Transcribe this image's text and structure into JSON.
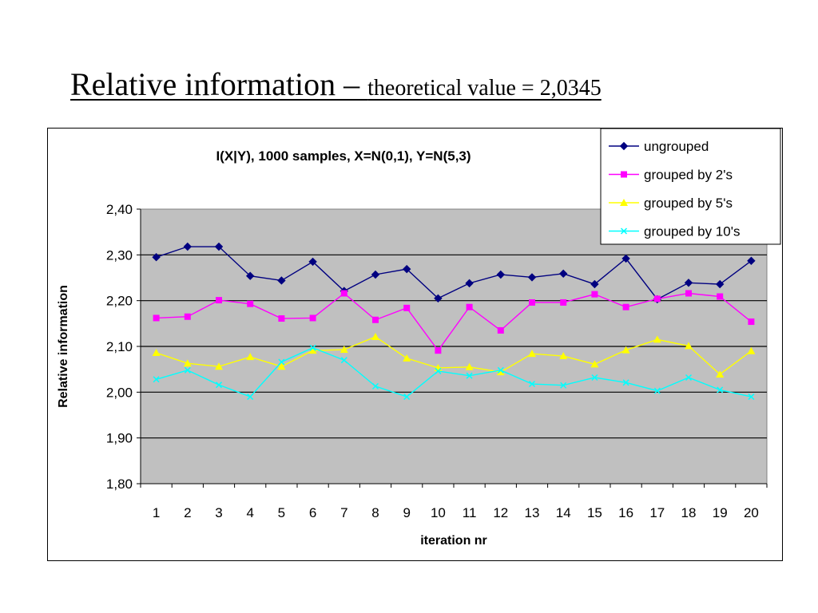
{
  "slide": {
    "title_main": "Relative information – ",
    "title_sub": "theoretical value = 2,0345"
  },
  "chart_data": {
    "type": "line",
    "title": "I(X|Y), 1000 samples, X=N(0,1), Y=N(5,3)",
    "xlabel": "iteration nr",
    "ylabel": "Relative information",
    "categories": [
      "1",
      "2",
      "3",
      "4",
      "5",
      "6",
      "7",
      "8",
      "9",
      "10",
      "11",
      "12",
      "13",
      "14",
      "15",
      "16",
      "17",
      "18",
      "19",
      "20"
    ],
    "ylim": [
      1.8,
      2.4
    ],
    "yticks": [
      "1,80",
      "1,90",
      "2,00",
      "2,10",
      "2,20",
      "2,30",
      "2,40"
    ],
    "grid": true,
    "legend_position": "top-right",
    "plot_background": "#c0c0c0",
    "series": [
      {
        "name": "ungrouped",
        "color": "#000080",
        "marker": "diamond",
        "values": [
          2.295,
          2.318,
          2.318,
          2.254,
          2.244,
          2.285,
          2.221,
          2.257,
          2.269,
          2.205,
          2.238,
          2.257,
          2.251,
          2.259,
          2.236,
          2.292,
          2.203,
          2.239,
          2.236,
          2.287
        ]
      },
      {
        "name": "grouped by 2's",
        "color": "#ff00ff",
        "marker": "square",
        "values": [
          2.162,
          2.165,
          2.201,
          2.193,
          2.161,
          2.162,
          2.216,
          2.158,
          2.184,
          2.091,
          2.186,
          2.135,
          2.196,
          2.196,
          2.214,
          2.186,
          2.204,
          2.216,
          2.209,
          2.154
        ]
      },
      {
        "name": "grouped by 5's",
        "color": "#ffff00",
        "marker": "triangle",
        "values": [
          2.086,
          2.063,
          2.056,
          2.077,
          2.056,
          2.091,
          2.093,
          2.121,
          2.074,
          2.053,
          2.055,
          2.044,
          2.084,
          2.079,
          2.061,
          2.092,
          2.115,
          2.101,
          2.039,
          2.09
        ]
      },
      {
        "name": "grouped by 10's",
        "color": "#00ffff",
        "marker": "x",
        "values": [
          2.028,
          2.048,
          2.016,
          1.99,
          2.066,
          2.097,
          2.07,
          2.013,
          1.99,
          2.046,
          2.036,
          2.048,
          2.018,
          2.015,
          2.032,
          2.021,
          2.003,
          2.032,
          2.005,
          1.99
        ]
      }
    ]
  }
}
